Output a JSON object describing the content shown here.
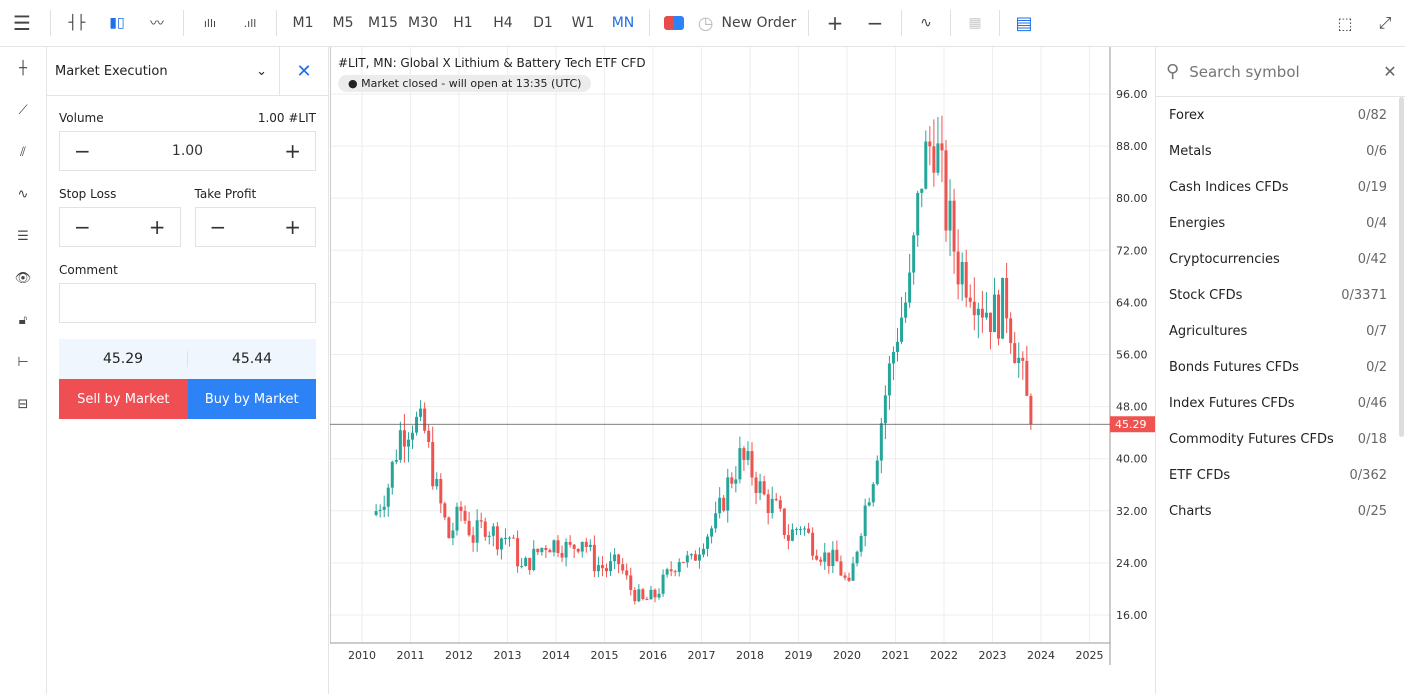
{
  "toolbar": {
    "timeframes": [
      "M1",
      "M5",
      "M15",
      "M30",
      "H1",
      "H4",
      "D1",
      "W1",
      "MN"
    ],
    "active_timeframe": "MN",
    "new_order": "New Order"
  },
  "order": {
    "mode": "Market Execution",
    "volume_label": "Volume",
    "volume_info": "1.00 #LIT",
    "volume_value": "1.00",
    "stop_loss": "Stop Loss",
    "take_profit": "Take Profit",
    "comment": "Comment",
    "bid": "45.29",
    "ask": "45.44",
    "sell": "Sell by Market",
    "buy": "Buy by Market"
  },
  "chart": {
    "title": "#LIT, MN: Global X Lithium & Battery Tech ETF CFD",
    "status": "Market closed - will open at 13:35 (UTC)"
  },
  "chart_data": {
    "type": "candlestick",
    "title": "#LIT, MN: Global X Lithium & Battery Tech ETF CFD",
    "ylim": [
      8,
      100
    ],
    "y_ticks": [
      16,
      24,
      32,
      40,
      48,
      56,
      64,
      72,
      80,
      88,
      96
    ],
    "x_ticks": [
      "2010",
      "2011",
      "2012",
      "2013",
      "2014",
      "2015",
      "2016",
      "2017",
      "2018",
      "2019",
      "2020",
      "2021",
      "2022",
      "2023",
      "2024",
      "2025"
    ],
    "current_price": 45.29,
    "start": 2010.25,
    "quarterly_closes": [
      32,
      36,
      44,
      46,
      44,
      35,
      28,
      32,
      28,
      30,
      28,
      28,
      23,
      25,
      27,
      27,
      26,
      28,
      24,
      23,
      24,
      20,
      18,
      19,
      22,
      25,
      24,
      28,
      30,
      36,
      40,
      38,
      34,
      32,
      28,
      30,
      27,
      25,
      24,
      20,
      30,
      38,
      50,
      60,
      66,
      84,
      90,
      78,
      70,
      68,
      64,
      62,
      64,
      55,
      45.29
    ]
  },
  "search": {
    "placeholder": "Search symbol"
  },
  "categories": [
    {
      "name": "Forex",
      "count": "0/82"
    },
    {
      "name": "Metals",
      "count": "0/6"
    },
    {
      "name": "Cash Indices CFDs",
      "count": "0/19"
    },
    {
      "name": "Energies",
      "count": "0/4"
    },
    {
      "name": "Cryptocurrencies",
      "count": "0/42"
    },
    {
      "name": "Stock CFDs",
      "count": "0/3371"
    },
    {
      "name": "Agricultures",
      "count": "0/7"
    },
    {
      "name": "Bonds Futures CFDs",
      "count": "0/2"
    },
    {
      "name": "Index Futures CFDs",
      "count": "0/46"
    },
    {
      "name": "Commodity Futures CFDs",
      "count": "0/18"
    },
    {
      "name": "ETF CFDs",
      "count": "0/362"
    },
    {
      "name": "Charts",
      "count": "0/25"
    }
  ],
  "colors": {
    "up": "#26a69a",
    "down": "#ef5350",
    "accent": "#1e6fe8",
    "sell": "#ef4f52",
    "buy": "#2d82f5"
  }
}
